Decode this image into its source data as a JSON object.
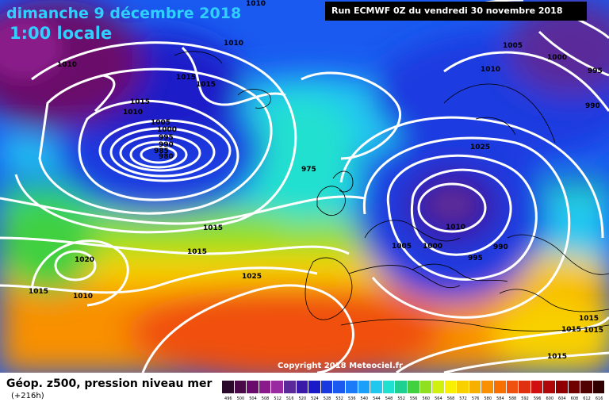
{
  "header": {
    "date": "dimanche 9 décembre 2018",
    "time": "1:00 locale",
    "run": "Run ECMWF 0Z du vendredi 30 novembre 2018"
  },
  "copyright": "Copyright 2018 Meteociel.fr",
  "legend": {
    "title": "Géop. z500, pression niveau mer",
    "subtitle": "(+216h)",
    "scale": [
      {
        "value": "496",
        "color": "#2a0a2a"
      },
      {
        "value": "500",
        "color": "#4a0a4a"
      },
      {
        "value": "504",
        "color": "#6a0a6a"
      },
      {
        "value": "508",
        "color": "#8a1a8a"
      },
      {
        "value": "512",
        "color": "#9a2aa0"
      },
      {
        "value": "516",
        "color": "#5a2a9a"
      },
      {
        "value": "520",
        "color": "#3a1aa8"
      },
      {
        "value": "524",
        "color": "#1a1ac8"
      },
      {
        "value": "528",
        "color": "#1a3ae0"
      },
      {
        "value": "532",
        "color": "#1a5af0"
      },
      {
        "value": "536",
        "color": "#1a7af8"
      },
      {
        "value": "540",
        "color": "#1aa0f8"
      },
      {
        "value": "544",
        "color": "#20c8f0"
      },
      {
        "value": "548",
        "color": "#20e0d0"
      },
      {
        "value": "552",
        "color": "#20d090"
      },
      {
        "value": "556",
        "color": "#40d040"
      },
      {
        "value": "560",
        "color": "#90e020"
      },
      {
        "value": "564",
        "color": "#d0f010"
      },
      {
        "value": "568",
        "color": "#f8f000"
      },
      {
        "value": "572",
        "color": "#f8d000"
      },
      {
        "value": "576",
        "color": "#f8b000"
      },
      {
        "value": "580",
        "color": "#f89000"
      },
      {
        "value": "584",
        "color": "#f87000"
      },
      {
        "value": "588",
        "color": "#f05010"
      },
      {
        "value": "592",
        "color": "#e03010"
      },
      {
        "value": "596",
        "color": "#d01010"
      },
      {
        "value": "600",
        "color": "#b00808"
      },
      {
        "value": "604",
        "color": "#900000"
      },
      {
        "value": "608",
        "color": "#700000"
      },
      {
        "value": "612",
        "color": "#500000"
      },
      {
        "value": "616",
        "color": "#300000"
      }
    ]
  },
  "isobar_labels": [
    "1010",
    "1010",
    "1015",
    "1010",
    "1015",
    "1015",
    "1010",
    "1005",
    "1000",
    "995",
    "990",
    "985",
    "980",
    "975",
    "1015",
    "1015",
    "1020",
    "1010",
    "1015",
    "1025",
    "1025",
    "1005",
    "1000",
    "1010",
    "995",
    "990",
    "1005",
    "1000",
    "995",
    "990",
    "1015",
    "1015",
    "1015",
    "1015",
    "1010"
  ]
}
